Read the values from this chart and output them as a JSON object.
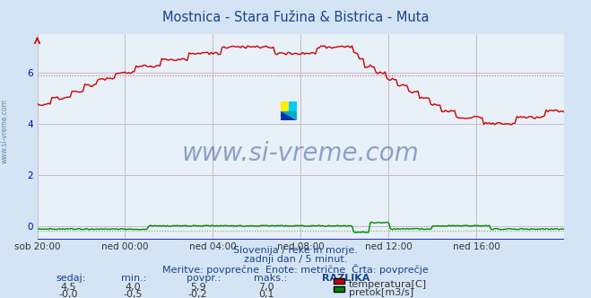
{
  "title": "Mostnica - Stara Fužina & Bistrica - Muta",
  "background_color": "#d4e4f4",
  "plot_bg_color": "#e8f0f8",
  "grid_color_v": "#c8b8cc",
  "grid_color_h": "#c8b8cc",
  "xlabel_ticks": [
    "sob 20:00",
    "ned 00:00",
    "ned 04:00",
    "ned 08:00",
    "ned 12:00",
    "ned 16:00"
  ],
  "n_points": 289,
  "temp_color": "#cc0000",
  "flow_color": "#008800",
  "dashed_temp_color": "#dd6666",
  "dashed_flow_color": "#66bb66",
  "ylim_min": -0.55,
  "ylim_max": 7.5,
  "watermark_text": "www.si-vreme.com",
  "subtitle1": "Slovenija / reke in morje.",
  "subtitle2": "zadnji dan / 5 minut.",
  "subtitle3": "Meritve: povprečne  Enote: metrične  Črta: povprečje",
  "legend_label1": "temperatura[C]",
  "legend_label2": "pretok[m3/s]",
  "table_headers": [
    "sedaj:",
    "min.:",
    "povpr.:",
    "maks.:",
    "RAZLIKA"
  ],
  "table_row1": [
    "4,5",
    "4,0",
    "5,9",
    "7,0"
  ],
  "table_row2": [
    "-0,0",
    "-0,5",
    "-0,2",
    "0,1"
  ],
  "temp_avg": 5.9,
  "flow_avg": -0.2,
  "yticks": [
    0,
    2,
    4,
    6
  ],
  "side_text": "www.si-vreme.com",
  "axis_red_color": "#cc0000",
  "axis_blue_color": "#0000cc",
  "text_color": "#1a4488"
}
